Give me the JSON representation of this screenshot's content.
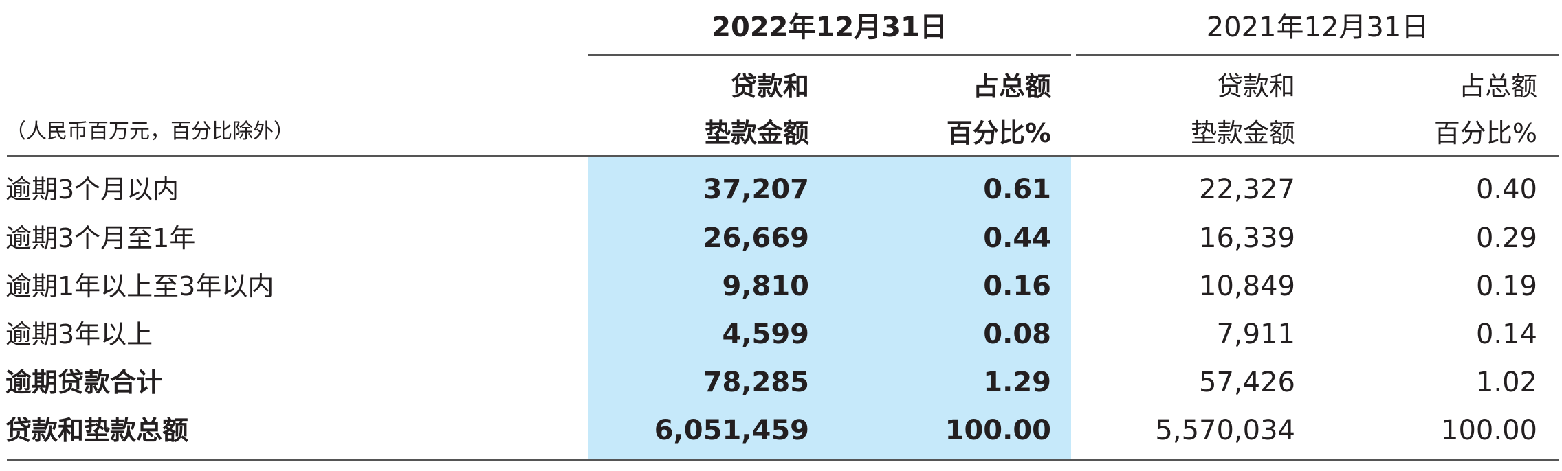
{
  "header": {
    "year_2022": "2022年12月31日",
    "year_2021": "2021年12月31日",
    "col_amount_line1": "贷款和",
    "col_amount_line2": "垫款金额",
    "col_pct_line1": "占总额",
    "col_pct_line2": "百分比%",
    "unit_note": "（人民币百万元，百分比除外）"
  },
  "highlight_color": "#c6e9fa",
  "rows": [
    {
      "label": "逾期3个月以内",
      "amt_2022": "37,207",
      "pct_2022": "0.61",
      "amt_2021": "22,327",
      "pct_2021": "0.40",
      "bold": false
    },
    {
      "label": "逾期3个月至1年",
      "amt_2022": "26,669",
      "pct_2022": "0.44",
      "amt_2021": "16,339",
      "pct_2021": "0.29",
      "bold": false
    },
    {
      "label": "逾期1年以上至3年以内",
      "amt_2022": "9,810",
      "pct_2022": "0.16",
      "amt_2021": "10,849",
      "pct_2021": "0.19",
      "bold": false
    },
    {
      "label": "逾期3年以上",
      "amt_2022": "4,599",
      "pct_2022": "0.08",
      "amt_2021": "7,911",
      "pct_2021": "0.14",
      "bold": false
    },
    {
      "label": "逾期贷款合计",
      "amt_2022": "78,285",
      "pct_2022": "1.29",
      "amt_2021": "57,426",
      "pct_2021": "1.02",
      "bold": true
    },
    {
      "label": "贷款和垫款总额",
      "amt_2022": "6,051,459",
      "pct_2022": "100.00",
      "amt_2021": "5,570,034",
      "pct_2021": "100.00",
      "bold": true
    }
  ]
}
